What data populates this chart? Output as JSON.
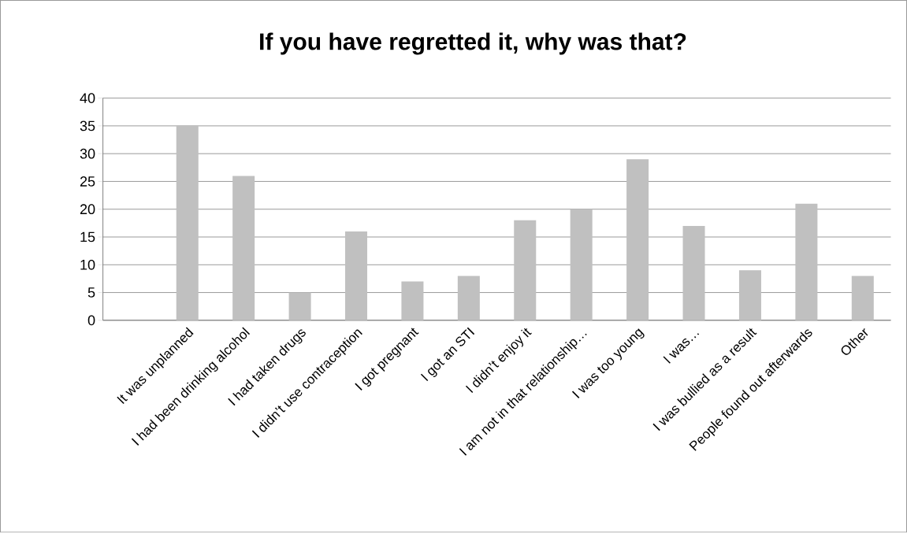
{
  "chart_data": {
    "type": "bar",
    "title": "If you have regretted it, why was that?",
    "categories": [
      null,
      "It was unplanned",
      "I had been drinking alcohol",
      "I had taken drugs",
      "I didn’t use contraception",
      "I got pregnant",
      "I got an STI",
      "I didn’t enjoy it",
      "I am not in that relationship…",
      "I was too young",
      "I was…",
      "I was bullied as a result",
      "People found out afterwards",
      "Other"
    ],
    "values": [
      null,
      35,
      26,
      5,
      16,
      7,
      8,
      18,
      20,
      29,
      17,
      9,
      21,
      8
    ],
    "color": "#c0c0c0",
    "ylim": [
      0,
      40
    ],
    "yticks": [
      0,
      5,
      10,
      15,
      20,
      25,
      30,
      35,
      40
    ],
    "grid": "y"
  }
}
